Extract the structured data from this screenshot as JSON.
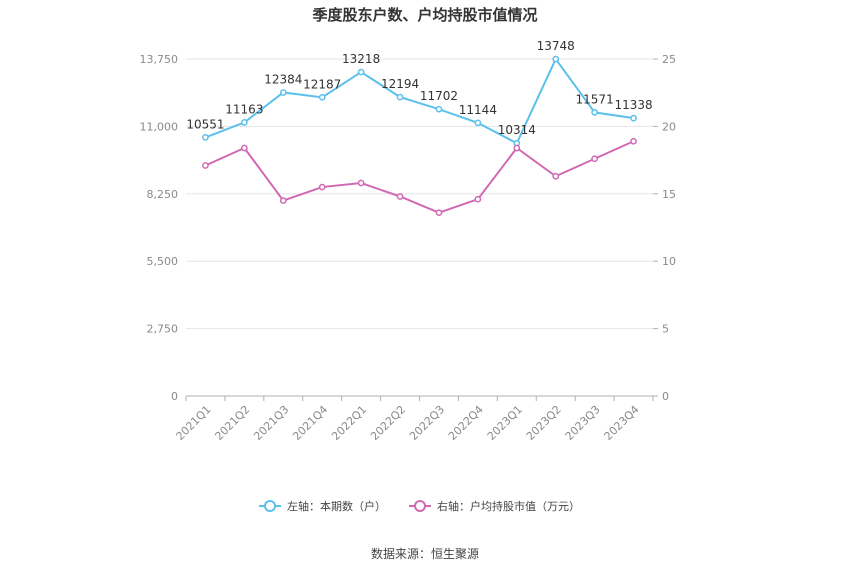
{
  "chart_data": {
    "type": "line",
    "title": "季度股东户数、户均持股市值情况",
    "categories": [
      "2021Q1",
      "2021Q2",
      "2021Q3",
      "2021Q4",
      "2022Q1",
      "2022Q2",
      "2022Q3",
      "2022Q4",
      "2023Q1",
      "2023Q2",
      "2023Q3",
      "2023Q4"
    ],
    "left_axis": {
      "min": 0,
      "max": 13750,
      "ticks": [
        "0",
        "2,750",
        "5,500",
        "8,250",
        "11,000",
        "13,750"
      ],
      "tick_values": [
        0,
        2750,
        5500,
        8250,
        11000,
        13750
      ]
    },
    "right_axis": {
      "min": 0,
      "max": 25,
      "ticks": [
        "0",
        "5",
        "10",
        "15",
        "20",
        "25"
      ],
      "tick_values": [
        0,
        5,
        10,
        15,
        20,
        25
      ]
    },
    "series": [
      {
        "name": "左轴：本期数（户）",
        "axis": "left",
        "color": "#5bc0eb",
        "values": [
          10551,
          11163,
          12384,
          12187,
          13218,
          12194,
          11702,
          11144,
          10314,
          13748,
          11571,
          11338
        ],
        "labels": [
          "10551",
          "11163",
          "12384",
          "12187",
          "13218",
          "12194",
          "11702",
          "11144",
          "10314",
          "13748",
          "11571",
          "11338"
        ]
      },
      {
        "name": "右轴：户均持股市值（万元）",
        "axis": "right",
        "color": "#d268b4",
        "values": [
          17.1,
          18.4,
          14.5,
          15.5,
          15.8,
          14.8,
          13.6,
          14.6,
          18.4,
          16.3,
          17.6,
          18.9
        ]
      }
    ],
    "grid": true,
    "legend_position": "bottom"
  },
  "source": "数据来源：恒生聚源"
}
